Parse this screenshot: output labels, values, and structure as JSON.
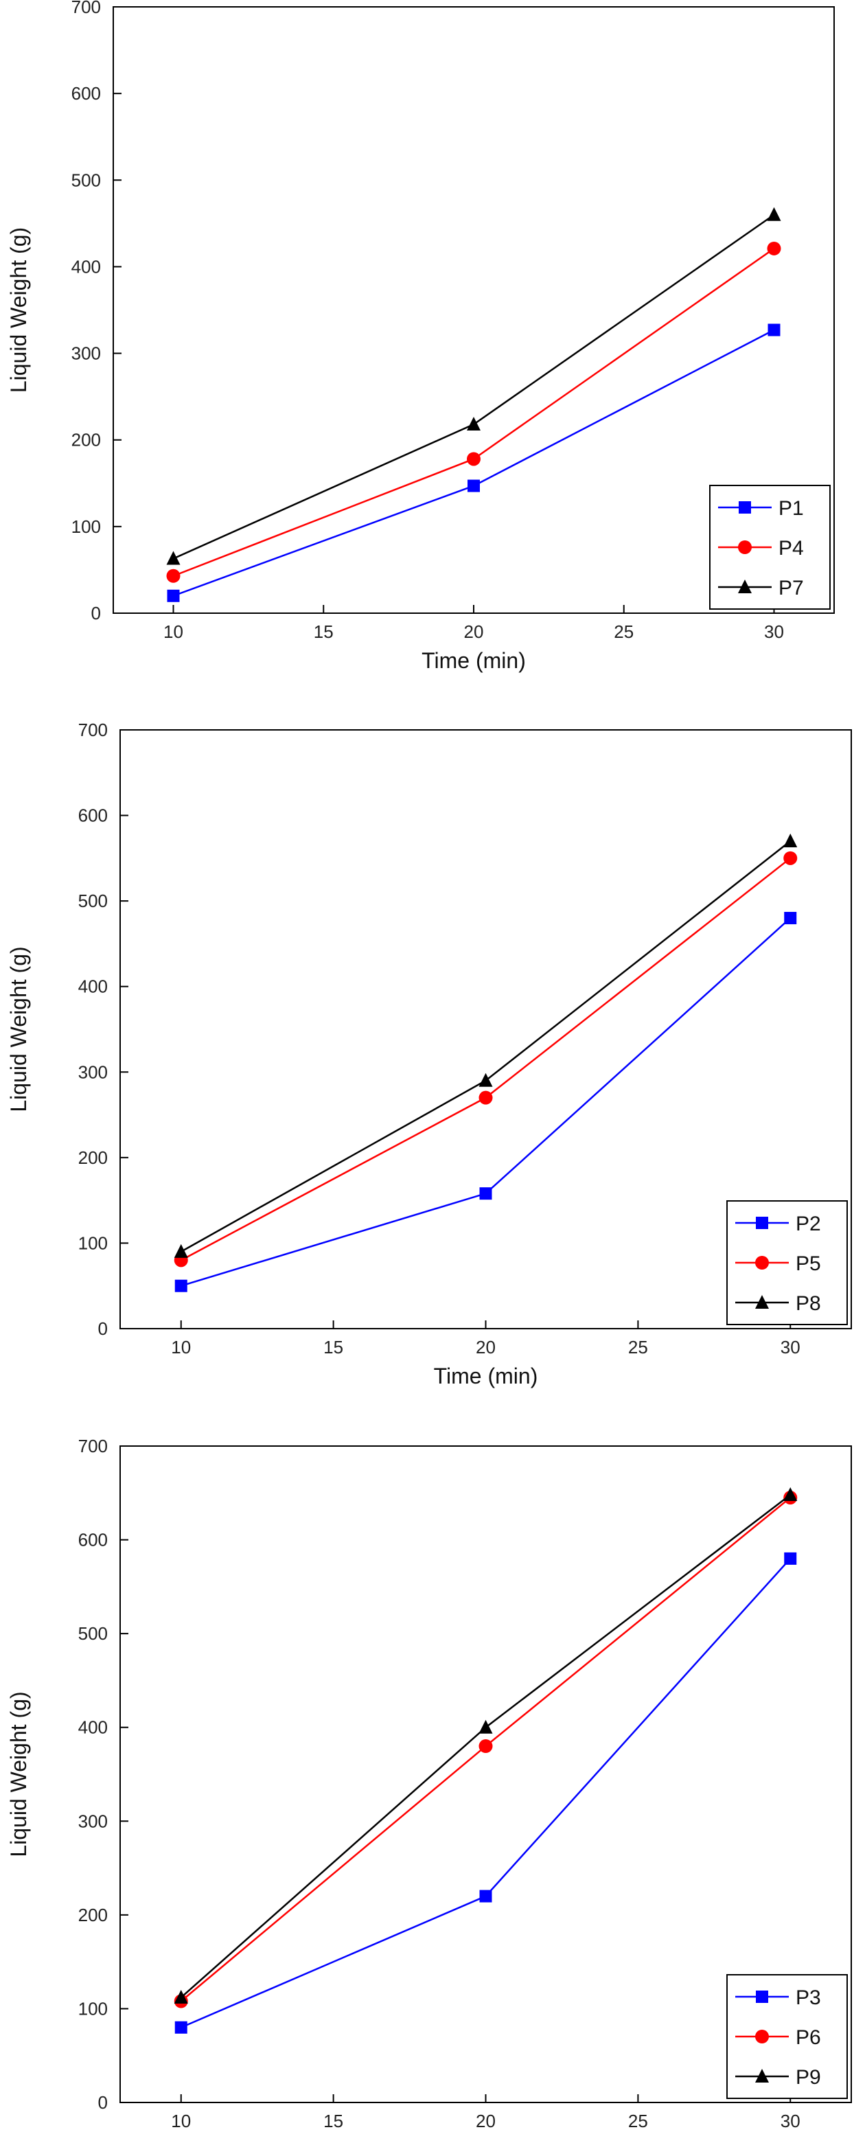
{
  "chart_data": [
    {
      "type": "line",
      "title": "",
      "xlabel": "Time (min)",
      "ylabel": "Liquid Weight (g)",
      "xlim": [
        8,
        32
      ],
      "ylim": [
        0,
        700
      ],
      "xticks": [
        10,
        15,
        20,
        25,
        30
      ],
      "yticks": [
        0,
        100,
        200,
        300,
        400,
        500,
        600,
        700
      ],
      "x": [
        10,
        20,
        30
      ],
      "legend_position": "bottom-right",
      "series": [
        {
          "name": "P1",
          "color": "#0000ff",
          "marker": "square",
          "values": [
            20,
            147,
            327
          ]
        },
        {
          "name": "P4",
          "color": "#ff0000",
          "marker": "circle",
          "values": [
            43,
            178,
            421
          ]
        },
        {
          "name": "P7",
          "color": "#000000",
          "marker": "triangle",
          "values": [
            63,
            218,
            460
          ]
        }
      ]
    },
    {
      "type": "line",
      "title": "",
      "xlabel": "Time (min)",
      "ylabel": "Liquid Weight (g)",
      "xlim": [
        8,
        32
      ],
      "ylim": [
        0,
        700
      ],
      "xticks": [
        10,
        15,
        20,
        25,
        30
      ],
      "yticks": [
        0,
        100,
        200,
        300,
        400,
        500,
        600,
        700
      ],
      "x": [
        10,
        20,
        30
      ],
      "legend_position": "bottom-right",
      "series": [
        {
          "name": "P2",
          "color": "#0000ff",
          "marker": "square",
          "values": [
            50,
            158,
            480
          ]
        },
        {
          "name": "P5",
          "color": "#ff0000",
          "marker": "circle",
          "values": [
            80,
            270,
            550
          ]
        },
        {
          "name": "P8",
          "color": "#000000",
          "marker": "triangle",
          "values": [
            90,
            290,
            570
          ]
        }
      ]
    },
    {
      "type": "line",
      "title": "",
      "xlabel": "Time (min)",
      "ylabel": "Liquid Weight (g)",
      "xlim": [
        8,
        32
      ],
      "ylim": [
        0,
        700
      ],
      "xticks": [
        10,
        15,
        20,
        25,
        30
      ],
      "yticks": [
        0,
        100,
        200,
        300,
        400,
        500,
        600,
        700
      ],
      "x": [
        10,
        20,
        30
      ],
      "legend_position": "bottom-right",
      "series": [
        {
          "name": "P3",
          "color": "#0000ff",
          "marker": "square",
          "values": [
            80,
            220,
            580
          ]
        },
        {
          "name": "P6",
          "color": "#ff0000",
          "marker": "circle",
          "values": [
            108,
            380,
            645
          ]
        },
        {
          "name": "P9",
          "color": "#000000",
          "marker": "triangle",
          "values": [
            112,
            400,
            648
          ]
        }
      ]
    }
  ]
}
